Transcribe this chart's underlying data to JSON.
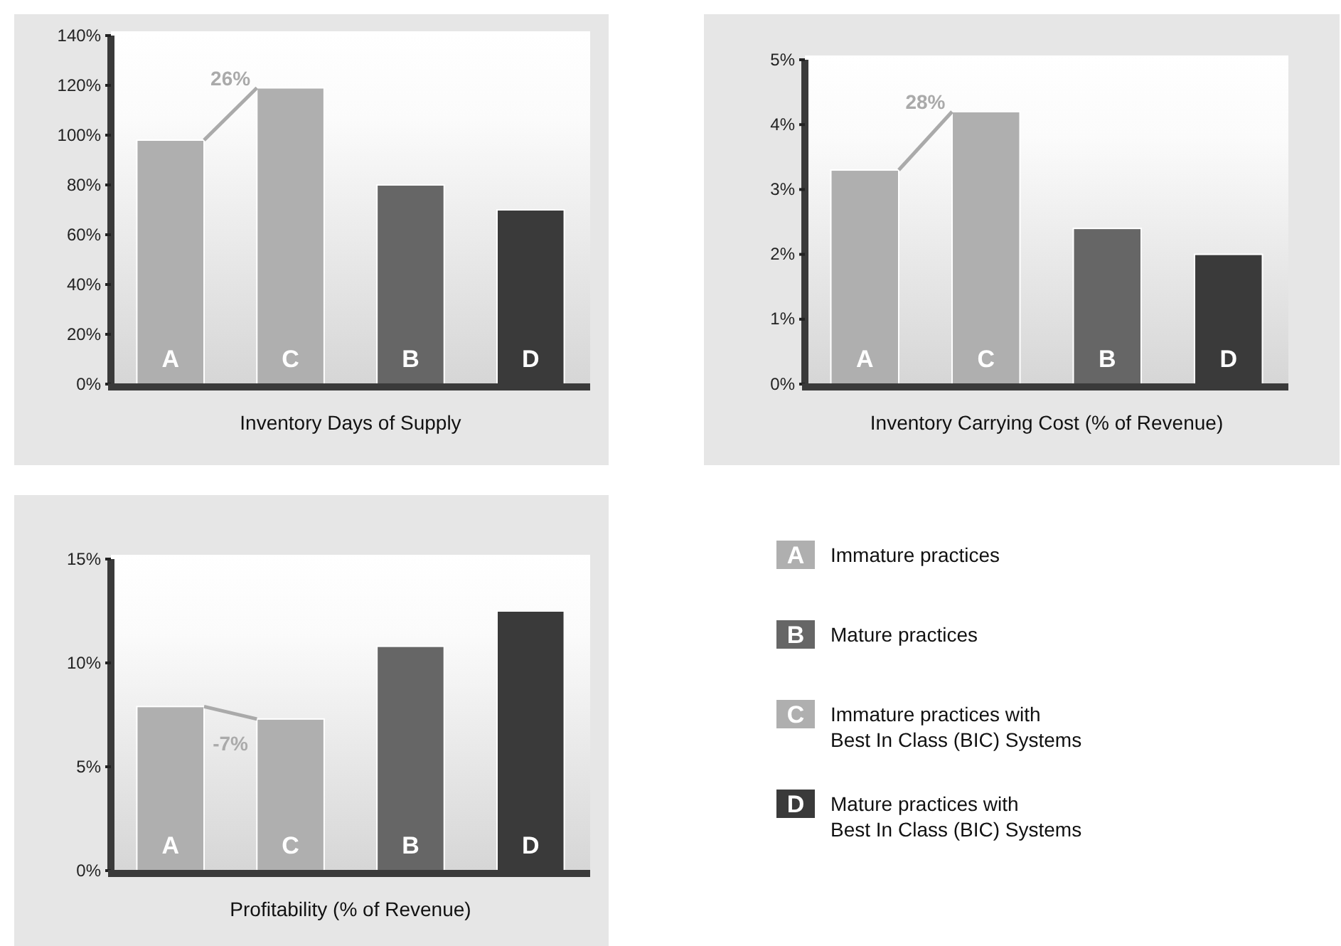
{
  "chart_data": [
    {
      "type": "bar",
      "xlabel": "Inventory Days of Supply",
      "categories": [
        "A",
        "C",
        "B",
        "D"
      ],
      "values": [
        98,
        119,
        80,
        70
      ],
      "colors": [
        "#afafaf",
        "#afafaf",
        "#666666",
        "#3a3a3a"
      ],
      "ylim": [
        0,
        140
      ],
      "yticks": [
        {
          "value": 0,
          "label": "0%"
        },
        {
          "value": 20,
          "label": "20%"
        },
        {
          "value": 40,
          "label": "40%"
        },
        {
          "value": 60,
          "label": "60%"
        },
        {
          "value": 80,
          "label": "80%"
        },
        {
          "value": 100,
          "label": "100%"
        },
        {
          "value": 120,
          "label": "120%"
        },
        {
          "value": 140,
          "label": "140%"
        }
      ],
      "annotations": [
        {
          "text": "26%",
          "x": "C",
          "y": 119
        }
      ]
    },
    {
      "type": "bar",
      "xlabel": "Inventory Carrying Cost (% of Revenue)",
      "categories": [
        "A",
        "C",
        "B",
        "D"
      ],
      "values": [
        3.3,
        4.2,
        2.4,
        2.0
      ],
      "colors": [
        "#afafaf",
        "#afafaf",
        "#666666",
        "#3a3a3a"
      ],
      "ylim": [
        0,
        5
      ],
      "yticks": [
        {
          "value": 0,
          "label": "0%"
        },
        {
          "value": 1,
          "label": "1%"
        },
        {
          "value": 2,
          "label": "2%"
        },
        {
          "value": 3,
          "label": "3%"
        },
        {
          "value": 4,
          "label": "4%"
        },
        {
          "value": 5,
          "label": "5%"
        }
      ],
      "annotations": [
        {
          "text": "28%",
          "x": "C",
          "y": 4.2
        }
      ]
    },
    {
      "type": "bar",
      "xlabel": "Profitability  (% of Revenue)",
      "categories": [
        "A",
        "C",
        "B",
        "D"
      ],
      "values": [
        7.9,
        7.3,
        10.8,
        12.5
      ],
      "colors": [
        "#afafaf",
        "#afafaf",
        "#666666",
        "#3a3a3a"
      ],
      "ylim": [
        0,
        15
      ],
      "yticks": [
        {
          "value": 0,
          "label": "0%"
        },
        {
          "value": 5,
          "label": "5%"
        },
        {
          "value": 10,
          "label": "10%"
        },
        {
          "value": 15,
          "label": "15%"
        }
      ],
      "annotations": [
        {
          "text": "-7%",
          "x": "C",
          "y": 7.3
        }
      ]
    },
    {
      "type": "other",
      "categories": [
        "A",
        "B",
        "C",
        "D"
      ],
      "colors": [
        "#afafaf",
        "#666666",
        "#afafaf",
        "#3a3a3a"
      ],
      "annotations": [
        "Immature practices",
        "Mature practices",
        "Immature practices with\nBest In Class (BIC) Systems",
        "Mature practices with\nBest In Class (BIC) Systems"
      ]
    }
  ]
}
